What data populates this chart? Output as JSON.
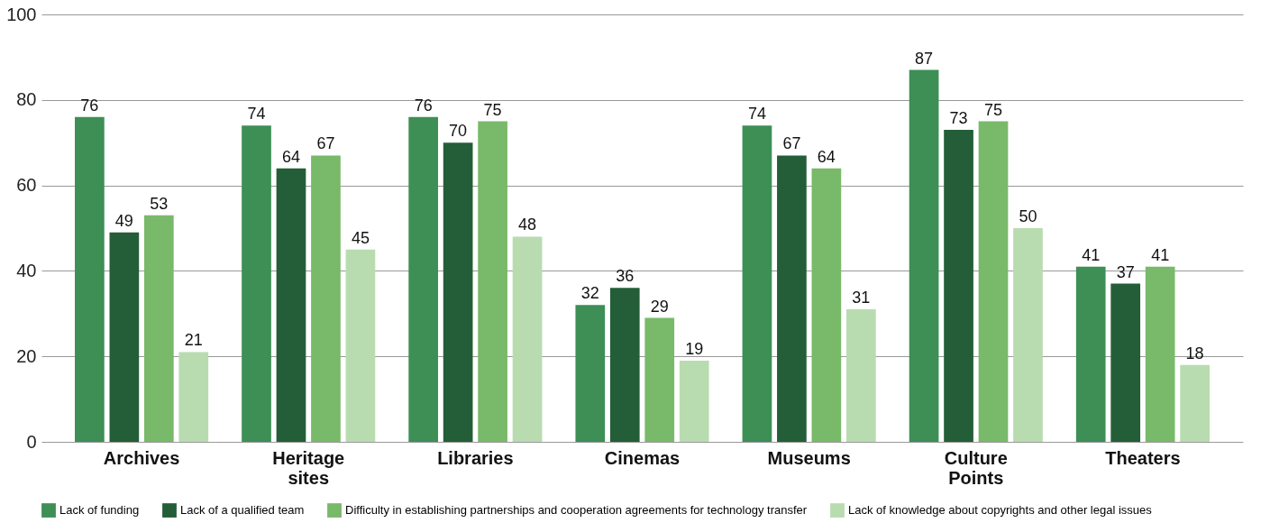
{
  "chart_data": {
    "type": "bar",
    "categories": [
      "Archives",
      "Heritage sites",
      "Libraries",
      "Cinemas",
      "Museums",
      "Culture Points",
      "Theaters"
    ],
    "series": [
      {
        "name": "Lack of funding",
        "color": "#3d8f55",
        "values": [
          76,
          74,
          76,
          32,
          74,
          87,
          41
        ]
      },
      {
        "name": "Lack of a qualified team",
        "color": "#245e38",
        "values": [
          49,
          64,
          70,
          36,
          67,
          73,
          37
        ]
      },
      {
        "name": "Difficulty in establishing partnerships and cooperation agreements for technology transfer",
        "color": "#79b96a",
        "values": [
          53,
          67,
          75,
          29,
          64,
          75,
          41
        ]
      },
      {
        "name": "Lack of knowledge about copyrights and other legal issues",
        "color": "#b8dcb0",
        "values": [
          21,
          45,
          48,
          19,
          31,
          50,
          18
        ]
      }
    ],
    "ylim": [
      0,
      100
    ],
    "yticks": [
      0,
      20,
      40,
      60,
      80,
      100
    ],
    "grid": "y",
    "legend": "bottom",
    "data_labels": true
  }
}
